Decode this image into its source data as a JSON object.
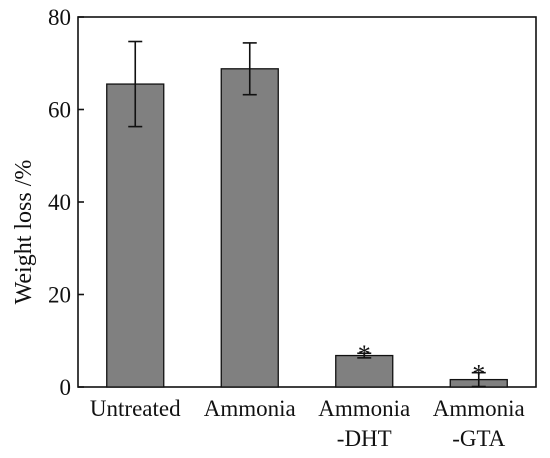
{
  "chart_data": {
    "type": "bar",
    "categories": [
      [
        "Untreated"
      ],
      [
        "Ammonia"
      ],
      [
        "Ammonia",
        "-DHT"
      ],
      [
        "Ammonia",
        "-GTA"
      ]
    ],
    "values": [
      65.5,
      68.8,
      6.8,
      1.6
    ],
    "errors": [
      9.2,
      5.6,
      0.5,
      1.5
    ],
    "significance": [
      "",
      "",
      "*",
      "*"
    ],
    "ylabel": "Weight loss /%",
    "xlabel": "",
    "ylim": [
      0,
      80
    ],
    "yticks": [
      0,
      20,
      40,
      60,
      80
    ],
    "bar_color": "#808080",
    "grid": false
  }
}
